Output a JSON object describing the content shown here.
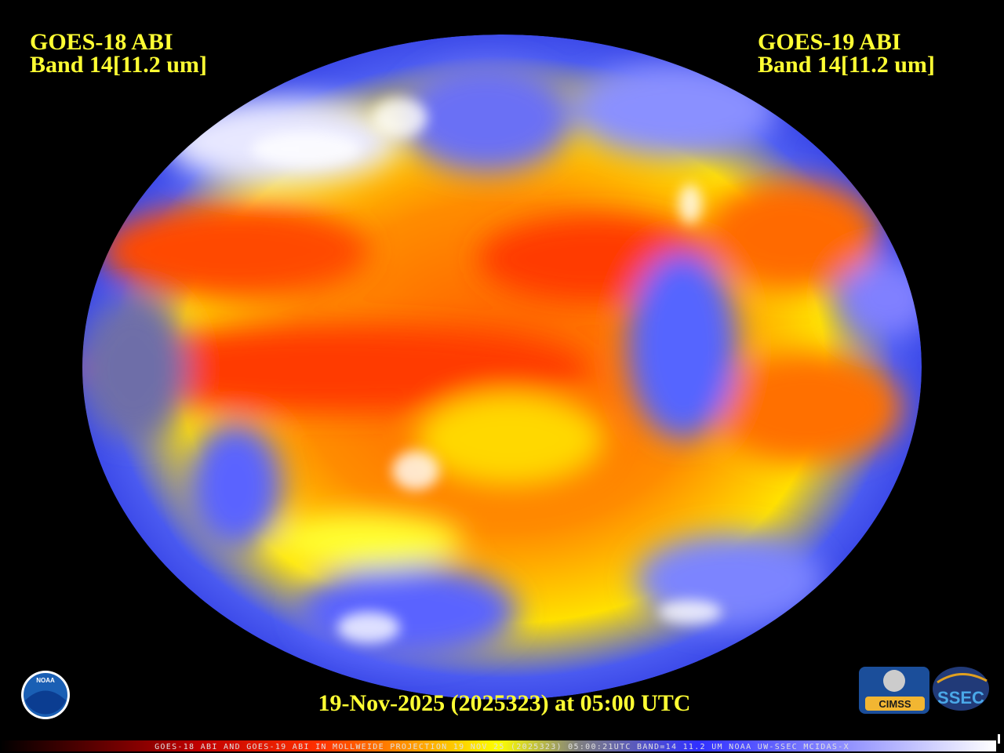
{
  "header": {
    "left": {
      "satellite": "GOES-18 ABI",
      "band": "Band 14[11.2 um]"
    },
    "right": {
      "satellite": "GOES-19 ABI",
      "band": "Band 14[11.2 um]"
    }
  },
  "timestamp": "19-Nov-2025 (2025323) at 05:00 UTC",
  "footer": "GOES-18 ABI AND GOES-19 ABI IN MOLLWEIDE PROJECTION 19 NOV 25 (2025323) 05:00:21UTC BAND=14 11.2 UM NOAA UW-SSEC MCIDAS-X",
  "logos": {
    "noaa": "NOAA",
    "cimss": "CIMSS",
    "ssec": "SSEC"
  }
}
